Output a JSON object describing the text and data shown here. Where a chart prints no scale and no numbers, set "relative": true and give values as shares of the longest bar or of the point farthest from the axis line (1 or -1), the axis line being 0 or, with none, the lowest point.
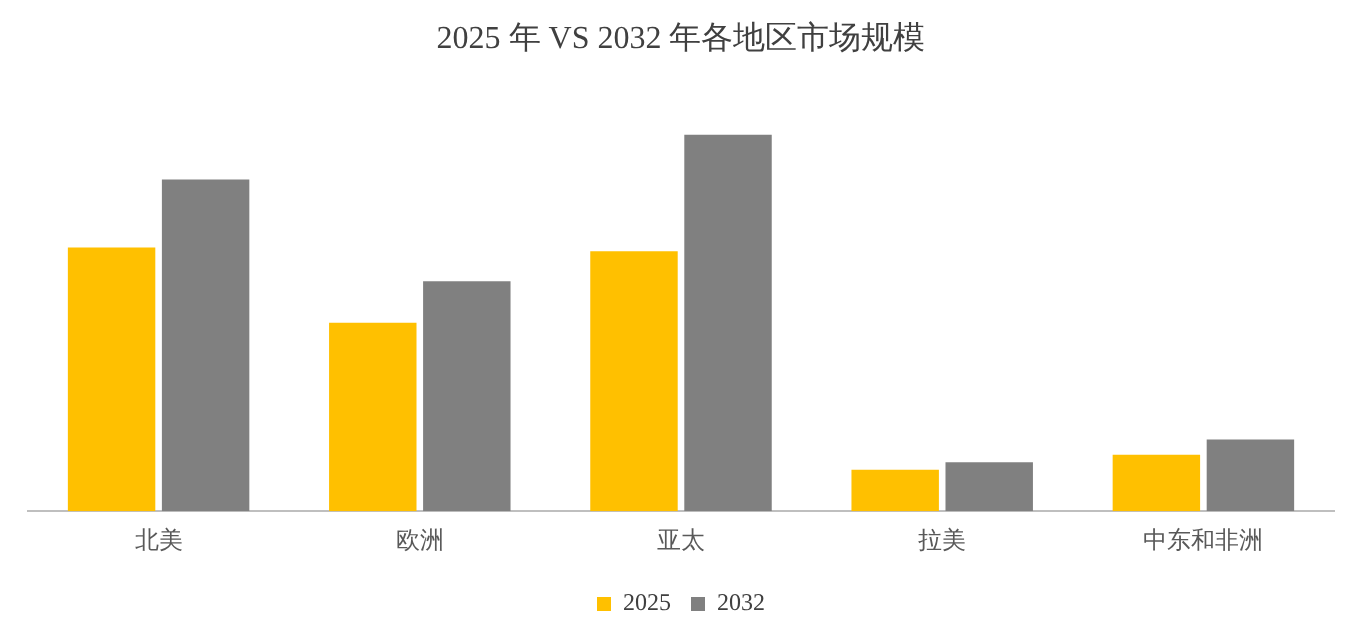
{
  "chart_data": {
    "type": "bar",
    "title": "2025 年 VS 2032 年各地区市场规模",
    "categories": [
      "北美",
      "欧洲",
      "亚太",
      "拉美",
      "中东和非洲"
    ],
    "relative": true,
    "grid": false,
    "legend": "bottom",
    "series": [
      {
        "name": "2025",
        "color": "#ffc000",
        "values": [
          0.7,
          0.5,
          0.69,
          0.11,
          0.15
        ]
      },
      {
        "name": "2032",
        "color": "#808080",
        "values": [
          0.88,
          0.61,
          1,
          0.13,
          0.19
        ]
      }
    ]
  }
}
